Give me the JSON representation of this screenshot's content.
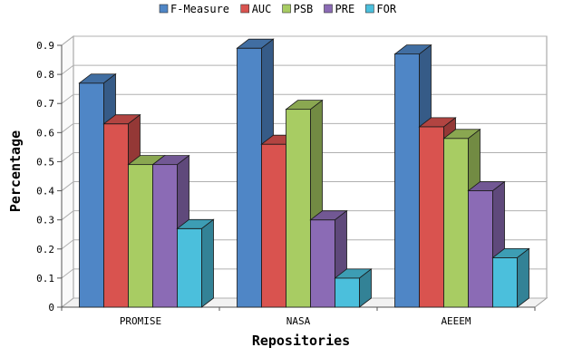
{
  "chart_data": {
    "type": "bar",
    "title": "",
    "xlabel": "Repositories",
    "ylabel": "Percentage",
    "categories": [
      "PROMISE",
      "NASA",
      "AEEEM"
    ],
    "ylim": [
      0,
      0.9
    ],
    "yticks": [
      "0",
      "0.1",
      "0.2",
      "0.3",
      "0.4",
      "0.5",
      "0.6",
      "0.7",
      "0.8",
      "0.9"
    ],
    "grid": true,
    "legend_position": "top-center",
    "three_d": true,
    "series": [
      {
        "name": "F-Measure",
        "color": "#4F86C6",
        "values": [
          0.77,
          0.89,
          0.87
        ]
      },
      {
        "name": "AUC",
        "color": "#D9534F",
        "values": [
          0.63,
          0.56,
          0.62
        ]
      },
      {
        "name": "PSB",
        "color": "#A8CC63",
        "values": [
          0.49,
          0.68,
          0.58
        ]
      },
      {
        "name": "PRE",
        "color": "#8B6BB5",
        "values": [
          0.49,
          0.3,
          0.4
        ]
      },
      {
        "name": "FOR",
        "color": "#4BBFDC",
        "values": [
          0.27,
          0.1,
          0.17
        ]
      }
    ]
  }
}
